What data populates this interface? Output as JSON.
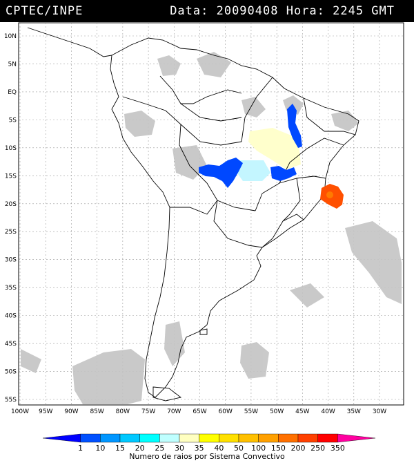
{
  "header": {
    "source": "CPTEC/INPE",
    "datetime": "Data: 20090408 Hora: 2245 GMT"
  },
  "axes": {
    "lat_labels": [
      "10N",
      "5N",
      "EQ",
      "5S",
      "10S",
      "15S",
      "20S",
      "25S",
      "30S",
      "35S",
      "40S",
      "45S",
      "50S",
      "55S"
    ],
    "lon_labels": [
      "100W",
      "95W",
      "90W",
      "85W",
      "80W",
      "75W",
      "70W",
      "65W",
      "60W",
      "55W",
      "50W",
      "45W",
      "40W",
      "35W",
      "30W"
    ]
  },
  "legend": {
    "title": "Numero de raios por Sistema Convectivo",
    "labels": [
      "1",
      "10",
      "15",
      "20",
      "25",
      "30",
      "35",
      "40",
      "50",
      "100",
      "150",
      "200",
      "250",
      "350"
    ],
    "colors": [
      "#0000ff",
      "#0050ff",
      "#0096ff",
      "#00c8ff",
      "#00ffff",
      "#bfffff",
      "#ffffc0",
      "#ffff00",
      "#ffe000",
      "#ffc000",
      "#ffa000",
      "#ff7000",
      "#ff4000",
      "#ff0000",
      "#ff00a0"
    ]
  },
  "features": {
    "cloud_color": "#c0c0c0",
    "map_line_color": "#000000",
    "storm_clusters": [
      {
        "name": "mato-grosso-cluster",
        "color": "#0050ff"
      },
      {
        "name": "goias-cluster",
        "color": "#0050ff"
      },
      {
        "name": "maranhao-cluster",
        "color": "#0050ff"
      },
      {
        "name": "bahia-cluster",
        "color": "#ff5000"
      },
      {
        "name": "pale-cyan-area",
        "color": "#c0f8ff"
      },
      {
        "name": "pale-yellow-area",
        "color": "#ffffd0"
      }
    ]
  }
}
